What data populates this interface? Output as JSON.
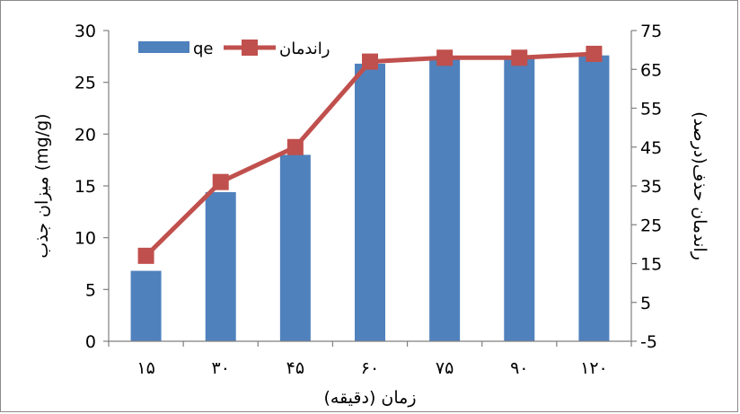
{
  "chart_data": {
    "type": "bar",
    "xlabel": "زمان (دقیقه)",
    "ylabel": "میزان جذب (mg/g)",
    "y2label": "راندمان حذف(درصد)",
    "categories": [
      "۱۵",
      "۳۰",
      "۴۵",
      "۶۰",
      "۷۵",
      "۹۰",
      "۱۲۰"
    ],
    "ylim": [
      0,
      30
    ],
    "yticks": [
      "0",
      "5",
      "10",
      "15",
      "20",
      "25",
      "30"
    ],
    "y2lim": [
      -5,
      75
    ],
    "y2ticks": [
      "-5",
      "5",
      "15",
      "25",
      "35",
      "45",
      "55",
      "65",
      "75"
    ],
    "grid": false,
    "legend": "top-left",
    "series": [
      {
        "name": "qe",
        "type": "bar",
        "axis": "left",
        "color": "#4F81BD",
        "values": [
          6.8,
          14.4,
          18.0,
          26.8,
          27.2,
          27.4,
          27.6
        ]
      },
      {
        "name": "راندمان",
        "type": "line",
        "axis": "right",
        "color": "#C0504D",
        "marker": "square",
        "values": [
          17,
          36,
          45,
          67,
          68,
          68,
          69
        ]
      }
    ]
  }
}
